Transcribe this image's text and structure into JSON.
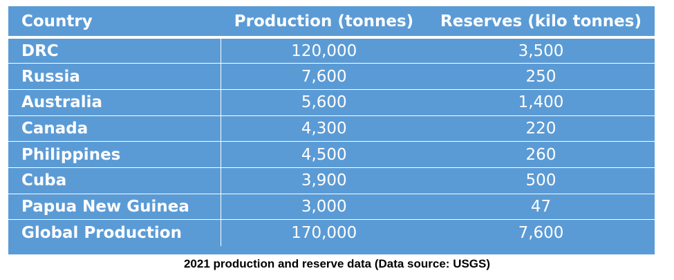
{
  "table": {
    "headers": [
      "Country",
      "Production (tonnes)",
      "Reserves (kilo tonnes)"
    ],
    "rows": [
      [
        "DRC",
        "120,000",
        "3,500"
      ],
      [
        "Russia",
        "7,600",
        "250"
      ],
      [
        "Australia",
        "5,600",
        "1,400"
      ],
      [
        "Canada",
        "4,300",
        "220"
      ],
      [
        "Philippines",
        "4,500",
        "260"
      ],
      [
        "Cuba",
        "3,900",
        "500"
      ],
      [
        "Papua New Guinea",
        "3,000",
        "47"
      ],
      [
        "Global Production",
        "170,000",
        "7,600"
      ]
    ]
  },
  "caption": "2021 production and reserve data (Data source: USGS)",
  "colors": {
    "table_fill": "#5b9bd5",
    "text": "#ffffff",
    "caption": "#000000"
  }
}
